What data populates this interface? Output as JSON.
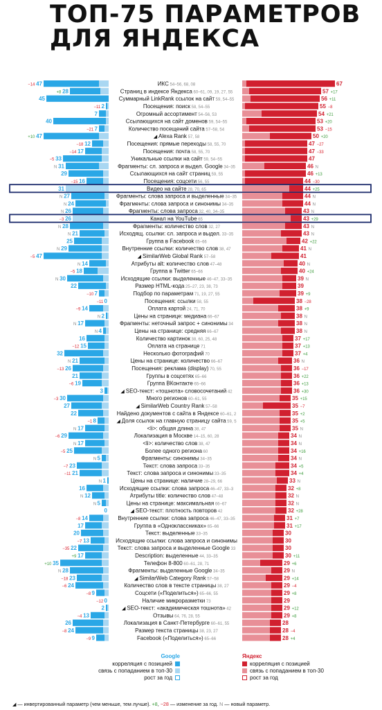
{
  "title": {
    "line1": "ТОП-75 ПАРАМЕТРОВ",
    "line2": "ДЛЯ ЯНДЕКСА"
  },
  "colors": {
    "google_main": "#2aa7e6",
    "google_light": "#a9d7f2",
    "yandex_main": "#d1202f",
    "yandex_light": "#e88f97",
    "plus": "#3a9a3a",
    "minus": "#d8202c",
    "new_marker": "#888888",
    "highlight": "#1b2a6b"
  },
  "legend": {
    "google": {
      "title": "Google",
      "corr": "корреляция с позицией",
      "top30": "связь с попаданием в топ-30",
      "growth": "рост за год"
    },
    "yandex": {
      "title": "Яндекс",
      "corr": "корреляция с позицией",
      "top30": "связь с попаданием в топ-30",
      "growth": "рост за год"
    }
  },
  "footnote": {
    "tri": "◢",
    "inv": " — инвертированный параметр (чем меньше, тем лучше).",
    "plus": "+8",
    "sep": ", ",
    "minus": "−28",
    "change": " — изменение за год.",
    "newmark": "N",
    "newtext": " — новый параметр."
  },
  "chart_data": {
    "type": "bar",
    "highlighted": [
      "Видео на сайте",
      "Канал на YouTube"
    ],
    "rows": [
      {
        "label": "ИКС",
        "tags": "54–56, 68, 08",
        "y_score": 67,
        "y_corr": 64,
        "y_change": "",
        "g_score": "47",
        "g_corr": 40,
        "g_change": "−14",
        "inv": false
      },
      {
        "label": "Страниц в индексе Яндекса",
        "tags": "60–61, 09, 19, 27, 55",
        "y_score": 57,
        "y_corr": 52,
        "y_change": "+17",
        "g_score": "28",
        "g_corr": 22,
        "g_change": "+8",
        "inv": false
      },
      {
        "label": "Суммарный LinkRank ссылок на сайт",
        "tags": "59, 54–55",
        "y_score": 56,
        "y_corr": 50,
        "y_change": "+11",
        "g_score": "45",
        "g_corr": 48,
        "g_change": "",
        "inv": false
      },
      {
        "label": "Посещения: поиск",
        "tags": "58, 54–55",
        "y_score": 55,
        "y_corr": 53,
        "y_change": "−8",
        "g_score": "2",
        "g_corr": 1,
        "g_change": "−11",
        "inv": false
      },
      {
        "label": "Огромный ассортимент",
        "tags": "54–56, 53",
        "y_score": 54,
        "y_corr": 40,
        "y_change": "+21",
        "g_score": "7",
        "g_corr": 5,
        "g_change": "",
        "inv": false
      },
      {
        "label": "Ссылающихся на сайт доменов",
        "tags": "59, 54–55",
        "y_score": 53,
        "y_corr": 50,
        "y_change": "+20",
        "g_score": "40",
        "g_corr": 38,
        "g_change": "",
        "inv": false
      },
      {
        "label": "Количество посещений сайта",
        "tags": "57–58, 54",
        "y_score": 53,
        "y_corr": 48,
        "y_change": "−15",
        "g_score": "7",
        "g_corr": 4,
        "g_change": "−21",
        "inv": false
      },
      {
        "label": "Alexa Rank",
        "tags": "57, 58",
        "y_score": 50,
        "y_corr": 30,
        "y_change": "+20",
        "g_score": "47",
        "g_corr": 40,
        "g_change": "+10",
        "inv": true
      },
      {
        "label": "Посещения: прямые переходы",
        "tags": "58, 55, 70",
        "y_score": 47,
        "y_corr": 45,
        "y_change": "−27",
        "g_score": "12",
        "g_corr": 8,
        "g_change": "−18",
        "inv": false
      },
      {
        "label": "Посещения: почта",
        "tags": "58, 55, 70",
        "y_score": 47,
        "y_corr": 45,
        "y_change": "−33",
        "g_score": "17",
        "g_corr": 12,
        "g_change": "−14",
        "inv": false
      },
      {
        "label": "Уникальные ссылки на сайт",
        "tags": "59, 54–55",
        "y_score": 47,
        "y_corr": 45,
        "y_change": "",
        "g_score": "33",
        "g_corr": 28,
        "g_change": "−5",
        "inv": false
      },
      {
        "label": "Фрагменты: сл. запроса и выдел. Google",
        "tags": "34–35",
        "y_score": 46,
        "y_corr": 30,
        "y_change": "N",
        "g_score": "31",
        "g_corr": 24,
        "g_change": "N",
        "inv": false
      },
      {
        "label": "Ссылающихся на сайт страниц",
        "tags": "59, 55",
        "y_score": 46,
        "y_corr": 44,
        "y_change": "+13",
        "g_score": "29",
        "g_corr": 25,
        "g_change": "",
        "inv": false
      },
      {
        "label": "Посещения: соцсети",
        "tags": "56, 55",
        "y_score": 44,
        "y_corr": 42,
        "y_change": "−30",
        "g_score": "16",
        "g_corr": 12,
        "g_change": "−15",
        "inv": false
      },
      {
        "label": "Видео на сайте",
        "tags": "28, 70, 65",
        "y_score": 44,
        "y_corr": 10,
        "y_change": "+25",
        "g_score": "31",
        "g_corr": 0,
        "g_change": "",
        "inv": false
      },
      {
        "label": "Фрагменты: слова запроса и выделенные",
        "tags": "34–35",
        "y_score": 44,
        "y_corr": 15,
        "y_change": "N",
        "g_score": "27",
        "g_corr": 24,
        "g_change": "N",
        "inv": false
      },
      {
        "label": "Фрагменты: слова запроса и синонимы",
        "tags": "34–35",
        "y_score": 44,
        "y_corr": 15,
        "y_change": "N",
        "g_score": "24",
        "g_corr": 22,
        "g_change": "N",
        "inv": false
      },
      {
        "label": "Фрагменты: слова запроса",
        "tags": "32, 40, 34–35",
        "y_score": 43,
        "y_corr": 12,
        "y_change": "N",
        "g_score": "26",
        "g_corr": 22,
        "g_change": "N",
        "inv": false
      },
      {
        "label": "Канал на YouTube",
        "tags": "65",
        "y_score": 43,
        "y_corr": 8,
        "y_change": "+29",
        "g_score": "26",
        "g_corr": 0,
        "g_change": "−3",
        "inv": false
      },
      {
        "label": "Фрагменты: количество слов",
        "tags": "32, 27",
        "y_score": 43,
        "y_corr": 12,
        "y_change": "N",
        "g_score": "28",
        "g_corr": 24,
        "g_change": "N",
        "inv": false
      },
      {
        "label": "Исходящ. ссылки: сл. запроса и выдел.",
        "tags": "33–35",
        "y_score": 43,
        "y_corr": 15,
        "y_change": "N",
        "g_score": "21",
        "g_corr": 18,
        "g_change": "N",
        "inv": false
      },
      {
        "label": "Группа в Facebook",
        "tags": "65–66",
        "y_score": 42,
        "y_corr": 10,
        "y_change": "+22",
        "g_score": "25",
        "g_corr": 20,
        "g_change": "",
        "inv": false
      },
      {
        "label": "Внутренние ссылки: количество слов",
        "tags": "38, 47",
        "y_score": 41,
        "y_corr": 12,
        "y_change": "N",
        "g_score": "29",
        "g_corr": 24,
        "g_change": "N",
        "inv": false
      },
      {
        "label": "SimilarWeb Global Rank",
        "tags": "57–58",
        "y_score": 41,
        "y_corr": 20,
        "y_change": "",
        "g_score": "47",
        "g_corr": 42,
        "g_change": "−5",
        "inv": true
      },
      {
        "label": "Атрибуты alt: количество слов",
        "tags": "47–48",
        "y_score": 40,
        "y_corr": 10,
        "y_change": "N",
        "g_score": "14",
        "g_corr": 12,
        "g_change": "N",
        "inv": false
      },
      {
        "label": "Группа в Twitter",
        "tags": "65–66",
        "y_score": 40,
        "y_corr": 12,
        "y_change": "+24",
        "g_score": "18",
        "g_corr": 10,
        "g_change": "−5",
        "inv": false
      },
      {
        "label": "Исходящие ссылки: выделенные",
        "tags": "46–47, 33–35",
        "y_score": 39,
        "y_corr": 10,
        "y_change": "N",
        "g_score": "30",
        "g_corr": 26,
        "g_change": "N",
        "inv": false
      },
      {
        "label": "Размер HTML-кода",
        "tags": "25–27, 23, 38, 73",
        "y_score": 39,
        "y_corr": 10,
        "y_change": "",
        "g_score": "22",
        "g_corr": 20,
        "g_change": "",
        "inv": false
      },
      {
        "label": "Подбор по параметрам",
        "tags": "71, 19, 27, 55",
        "y_score": 39,
        "y_corr": 12,
        "y_change": "+9",
        "g_score": "7",
        "g_corr": 4,
        "g_change": "−10",
        "inv": false
      },
      {
        "label": "Посещения: ссылки",
        "tags": "58, 55",
        "y_score": 38,
        "y_corr": 30,
        "y_change": "−28",
        "g_score": "0",
        "g_corr": 0,
        "g_change": "−11",
        "inv": false
      },
      {
        "label": "Оплата картой",
        "tags": "24, 71, 70",
        "y_score": 38,
        "y_corr": 12,
        "y_change": "+9",
        "g_score": "14",
        "g_corr": 10,
        "g_change": "−9",
        "inv": false
      },
      {
        "label": "Цены на странице: медиана",
        "tags": "66–67",
        "y_score": 38,
        "y_corr": 10,
        "y_change": "N",
        "g_score": "2",
        "g_corr": 1,
        "g_change": "N",
        "inv": false
      },
      {
        "label": "Фрагменты: неточный запрос + синонимы",
        "tags": "34",
        "y_score": 38,
        "y_corr": 12,
        "y_change": "N",
        "g_score": "17",
        "g_corr": 14,
        "g_change": "N",
        "inv": false
      },
      {
        "label": "Цены на странице: средняя",
        "tags": "66–67",
        "y_score": 38,
        "y_corr": 10,
        "y_change": "N",
        "g_score": "4",
        "g_corr": 2,
        "g_change": "N",
        "inv": false
      },
      {
        "label": "Количество картинок",
        "tags": "38, 60, 25, 48",
        "y_score": 37,
        "y_corr": 8,
        "y_change": "+17",
        "g_score": "16",
        "g_corr": 13,
        "g_change": "",
        "inv": false
      },
      {
        "label": "Оплата на странице",
        "tags": "71",
        "y_score": 37,
        "y_corr": 8,
        "y_change": "+13",
        "g_score": "15",
        "g_corr": 12,
        "g_change": "−12",
        "inv": false
      },
      {
        "label": "Несколько фотографий",
        "tags": "70",
        "y_score": 37,
        "y_corr": 8,
        "y_change": "+4",
        "g_score": "32",
        "g_corr": 28,
        "g_change": "",
        "inv": false
      },
      {
        "label": "Цены на странице: количество",
        "tags": "66–67",
        "y_score": 36,
        "y_corr": 10,
        "y_change": "N",
        "g_score": "21",
        "g_corr": 18,
        "g_change": "N",
        "inv": false
      },
      {
        "label": "Посещения: реклама (display)",
        "tags": "70, 55",
        "y_score": 36,
        "y_corr": 8,
        "y_change": "−17",
        "g_score": "26",
        "g_corr": 22,
        "g_change": "−13",
        "inv": false
      },
      {
        "label": "Группы в соцсетях",
        "tags": "65–66",
        "y_score": 36,
        "y_corr": 8,
        "y_change": "+22",
        "g_score": "21",
        "g_corr": 16,
        "g_change": "",
        "inv": false
      },
      {
        "label": "Группа ВКонтакте",
        "tags": "65–66",
        "y_score": 36,
        "y_corr": 8,
        "y_change": "+13",
        "g_score": "19",
        "g_corr": 14,
        "g_change": "−6",
        "inv": false
      },
      {
        "label": "SEO-текст: «тошнота» словосочетаний",
        "tags": "42",
        "y_score": 36,
        "y_corr": 8,
        "y_change": "+30",
        "g_score": "3",
        "g_corr": 2,
        "g_change": "",
        "inv": true
      },
      {
        "label": "Много регионов",
        "tags": "60–61, 55",
        "y_score": 35,
        "y_corr": 8,
        "y_change": "+15",
        "g_score": "30",
        "g_corr": 26,
        "g_change": "−3",
        "inv": false
      },
      {
        "label": "SimilarWeb Country Rank",
        "tags": "57–58",
        "y_score": 35,
        "y_corr": 20,
        "y_change": "−7",
        "g_score": "27",
        "g_corr": 22,
        "g_change": "",
        "inv": true
      },
      {
        "label": "Найдено документов с сайта в Яндексе",
        "tags": "60–61, 2",
        "y_score": 35,
        "y_corr": 8,
        "y_change": "+2",
        "g_score": "22",
        "g_corr": 18,
        "g_change": "",
        "inv": false
      },
      {
        "label": "Доля ссылок на главную страницу сайта",
        "tags": "59, 5",
        "y_score": 35,
        "y_corr": 8,
        "y_change": "+5",
        "g_score": "8",
        "g_corr": 5,
        "g_change": "−1",
        "inv": true
      },
      {
        "label": "<li>: общая длина",
        "tags": "38, 47",
        "y_score": 35,
        "y_corr": 8,
        "y_change": "N",
        "g_score": "17",
        "g_corr": 14,
        "g_change": "N",
        "inv": false
      },
      {
        "label": "Локализация в Москве",
        "tags": "14–15, 60, 28",
        "y_score": 34,
        "y_corr": 8,
        "y_change": "N",
        "g_score": "29",
        "g_corr": 25,
        "g_change": "−6",
        "inv": false
      },
      {
        "label": "<li>: количество слов",
        "tags": "38, 47",
        "y_score": 34,
        "y_corr": 8,
        "y_change": "N",
        "g_score": "17",
        "g_corr": 14,
        "g_change": "N",
        "inv": false
      },
      {
        "label": "Более одного региона",
        "tags": "60",
        "y_score": 34,
        "y_corr": 8,
        "y_change": "+16",
        "g_score": "25",
        "g_corr": 20,
        "g_change": "−5",
        "inv": false
      },
      {
        "label": "Фрагменты: синонимы",
        "tags": "34–35",
        "y_score": 34,
        "y_corr": 8,
        "y_change": "N",
        "g_score": "5",
        "g_corr": 3,
        "g_change": "N",
        "inv": false
      },
      {
        "label": "Текст: слова запроса",
        "tags": "33–35",
        "y_score": 34,
        "y_corr": 10,
        "y_change": "+5",
        "g_score": "23",
        "g_corr": 18,
        "g_change": "−7",
        "inv": false
      },
      {
        "label": "Текст: слова запроса и синонимы",
        "tags": "33–35",
        "y_score": 34,
        "y_corr": 10,
        "y_change": "+4",
        "g_score": "21",
        "g_corr": 16,
        "g_change": "−11",
        "inv": false
      },
      {
        "label": "Цены на странице: наличие",
        "tags": "28–29, 66",
        "y_score": 33,
        "y_corr": 8,
        "y_change": "N",
        "g_score": "1",
        "g_corr": 1,
        "g_change": "N",
        "inv": false
      },
      {
        "label": "Исходящие ссылки: слова запроса",
        "tags": "46–47, 33–3",
        "y_score": 32,
        "y_corr": 8,
        "y_change": "+8",
        "g_score": "16",
        "g_corr": 12,
        "g_change": "",
        "inv": false
      },
      {
        "label": "Атрибуты title: количество слов",
        "tags": "47–48",
        "y_score": 32,
        "y_corr": 8,
        "y_change": "N",
        "g_score": "12",
        "g_corr": 9,
        "g_change": "N",
        "inv": false
      },
      {
        "label": "Цены на странице: максимальная",
        "tags": "66–67",
        "y_score": 32,
        "y_corr": 8,
        "y_change": "N",
        "g_score": "5",
        "g_corr": 3,
        "g_change": "N",
        "inv": false
      },
      {
        "label": "SEO-текст: плотность повторов",
        "tags": "42",
        "y_score": 32,
        "y_corr": 8,
        "y_change": "+28",
        "g_score": "0",
        "g_corr": 0,
        "g_change": "",
        "inv": true
      },
      {
        "label": "Внутренние ссылки: слова запроса",
        "tags": "46–47, 33–35",
        "y_score": 31,
        "y_corr": 8,
        "y_change": "+7",
        "g_score": "14",
        "g_corr": 10,
        "g_change": "−8",
        "inv": false
      },
      {
        "label": "Группа в «Одноклассниках»",
        "tags": "65–66",
        "y_score": 31,
        "y_corr": 8,
        "y_change": "+17",
        "g_score": "17",
        "g_corr": 12,
        "g_change": "",
        "inv": false
      },
      {
        "label": "Текст: выделенные",
        "tags": "33–35",
        "y_score": 30,
        "y_corr": 8,
        "y_change": "",
        "g_score": "20",
        "g_corr": 16,
        "g_change": "",
        "inv": false
      },
      {
        "label": "Исходящие ссылки: слова запроса и синонимы",
        "tags": "",
        "y_score": 30,
        "y_corr": 8,
        "y_change": "",
        "g_score": "13",
        "g_corr": 10,
        "g_change": "−7",
        "inv": false
      },
      {
        "label": "Текст: слова запроса и выделенные Google",
        "tags": "33",
        "y_score": 30,
        "y_corr": 8,
        "y_change": "",
        "g_score": "22",
        "g_corr": 18,
        "g_change": "−35",
        "inv": false
      },
      {
        "label": "Description: выделенные",
        "tags": "44, 33–35",
        "y_score": 30,
        "y_corr": 8,
        "y_change": "+11",
        "g_score": "17",
        "g_corr": 12,
        "g_change": "+9",
        "inv": false
      },
      {
        "label": "Телефон 8-800",
        "tags": "60–61, 28, 71",
        "y_score": 29,
        "y_corr": 16,
        "y_change": "+6",
        "g_score": "35",
        "g_corr": 30,
        "g_change": "+10",
        "inv": false
      },
      {
        "label": "Фрагменты: выделенные Google",
        "tags": "34–35",
        "y_score": 29,
        "y_corr": 8,
        "y_change": "N",
        "g_score": "28",
        "g_corr": 24,
        "g_change": "N",
        "inv": false
      },
      {
        "label": "SimilarWeb Category Rank",
        "tags": "57–58",
        "y_score": 29,
        "y_corr": 12,
        "y_change": "+14",
        "g_score": "23",
        "g_corr": 18,
        "g_change": "−18",
        "inv": true
      },
      {
        "label": "Количество слов в тексте страницы",
        "tags": "38, 27",
        "y_score": 29,
        "y_corr": 8,
        "y_change": "−4",
        "g_score": "24",
        "g_corr": 20,
        "g_change": "−6",
        "inv": false
      },
      {
        "label": "Соцсети («Поделиться»)",
        "tags": "65–66, 55",
        "y_score": 29,
        "y_corr": 8,
        "y_change": "+8",
        "g_score": "9",
        "g_corr": 6,
        "g_change": "−8",
        "inv": false
      },
      {
        "label": "Наличие микроразметки",
        "tags": "73",
        "y_score": 29,
        "y_corr": 8,
        "y_change": "",
        "g_score": "0",
        "g_corr": 0,
        "g_change": "−12",
        "inv": false
      },
      {
        "label": "SEO-текст: «академическая тошнота»",
        "tags": "42",
        "y_score": 29,
        "y_corr": 8,
        "y_change": "+12",
        "g_score": "2",
        "g_corr": 1,
        "g_change": "",
        "inv": true
      },
      {
        "label": "Отзывы",
        "tags": "64, 76, 28, 55",
        "y_score": 29,
        "y_corr": 8,
        "y_change": "+8",
        "g_score": "13",
        "g_corr": 10,
        "g_change": "−4",
        "inv": false
      },
      {
        "label": "Локализация в Санкт-Петербурге",
        "tags": "60–61, 55",
        "y_score": 28,
        "y_corr": 8,
        "y_change": "",
        "g_score": "26",
        "g_corr": 22,
        "g_change": "",
        "inv": false
      },
      {
        "label": "Размер текста страницы",
        "tags": "38, 23, 27",
        "y_score": 28,
        "y_corr": 8,
        "y_change": "−4",
        "g_score": "24",
        "g_corr": 20,
        "g_change": "−8",
        "inv": false
      },
      {
        "label": "Facebook («Поделиться»)",
        "tags": "65–66",
        "y_score": 28,
        "y_corr": 8,
        "y_change": "+4",
        "g_score": "9",
        "g_corr": 6,
        "g_change": "−9",
        "inv": false
      }
    ]
  }
}
